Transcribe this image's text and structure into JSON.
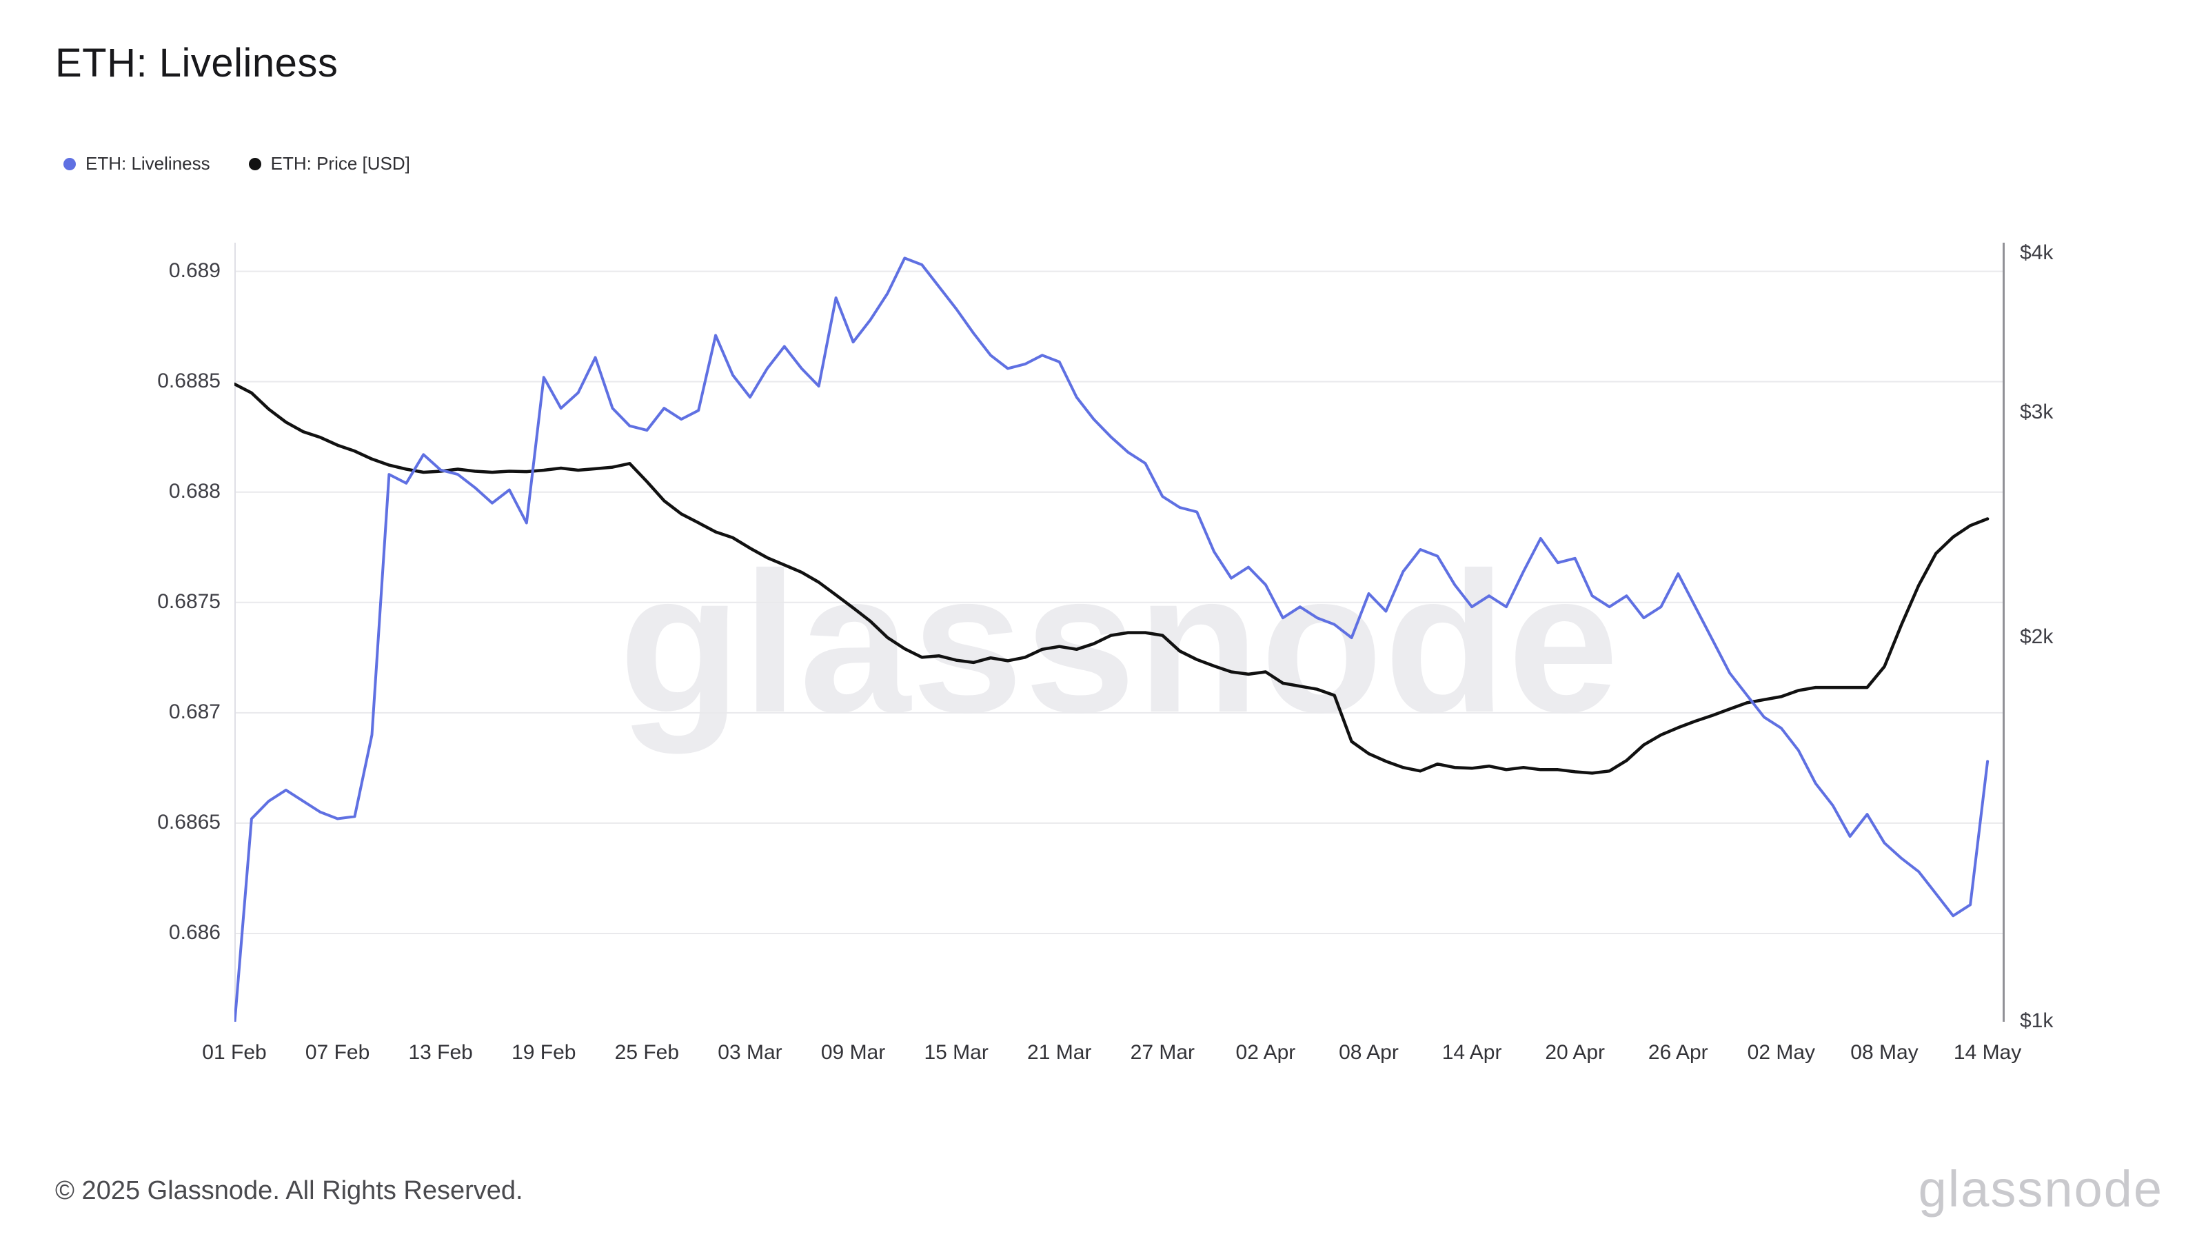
{
  "page": {
    "title": "ETH: Liveliness",
    "watermark": "glassnode",
    "footer_copyright": "© 2025 Glassnode. All Rights Reserved.",
    "footer_brand": "glassnode"
  },
  "legend": {
    "items": [
      {
        "label": "ETH: Liveliness",
        "color": "#5f70e2"
      },
      {
        "label": "ETH: Price [USD]",
        "color": "#111111"
      }
    ]
  },
  "chart_data": {
    "type": "line",
    "title": "ETH: Liveliness",
    "grid": "horizontal",
    "legend_position": "top-left",
    "x_domain_days": 103,
    "x_tick_labels": [
      "01 Feb",
      "07 Feb",
      "13 Feb",
      "19 Feb",
      "25 Feb",
      "03 Mar",
      "09 Mar",
      "15 Mar",
      "21 Mar",
      "27 Mar",
      "02 Apr",
      "08 Apr",
      "14 Apr",
      "20 Apr",
      "26 Apr",
      "02 May",
      "08 May",
      "14 May"
    ],
    "x_tick_day_index": [
      0,
      6,
      12,
      18,
      24,
      30,
      36,
      42,
      48,
      54,
      60,
      66,
      72,
      78,
      84,
      90,
      96,
      102
    ],
    "left_axis": {
      "scale": "linear",
      "min": 0.6856,
      "max": 0.68913,
      "ticks": [
        0.689,
        0.6885,
        0.688,
        0.6875,
        0.687,
        0.6865,
        0.686
      ],
      "tick_labels": [
        "0.689",
        "0.6885",
        "0.688",
        "0.6875",
        "0.687",
        "0.6865",
        "0.686"
      ]
    },
    "right_axis": {
      "scale": "log",
      "min": 1000,
      "max": 4078,
      "ticks": [
        4000,
        3000,
        2000,
        1000
      ],
      "tick_labels": [
        "$4k",
        "$3k",
        "$2k",
        "$1k"
      ]
    },
    "series": [
      {
        "name": "ETH: Price [USD]",
        "axis": "right",
        "color": "#111111",
        "stroke_width": 4.5,
        "values": [
          3160,
          3110,
          3020,
          2950,
          2900,
          2870,
          2830,
          2800,
          2760,
          2730,
          2710,
          2695,
          2700,
          2710,
          2700,
          2695,
          2700,
          2698,
          2705,
          2715,
          2705,
          2712,
          2720,
          2738,
          2650,
          2560,
          2500,
          2460,
          2420,
          2395,
          2350,
          2310,
          2280,
          2250,
          2210,
          2160,
          2110,
          2060,
          2000,
          1960,
          1930,
          1935,
          1920,
          1912,
          1928,
          1918,
          1930,
          1958,
          1968,
          1958,
          1978,
          2008,
          2018,
          2018,
          2008,
          1952,
          1922,
          1900,
          1880,
          1872,
          1880,
          1842,
          1832,
          1822,
          1802,
          1658,
          1622,
          1600,
          1582,
          1572,
          1592,
          1582,
          1580,
          1586,
          1576,
          1582,
          1576,
          1576,
          1570,
          1566,
          1572,
          1602,
          1648,
          1678,
          1700,
          1720,
          1738,
          1758,
          1778,
          1788,
          1798,
          1818,
          1828,
          1828,
          1828,
          1828,
          1898,
          2048,
          2198,
          2328,
          2398,
          2448,
          2478
        ]
      },
      {
        "name": "ETH: Liveliness",
        "axis": "left",
        "color": "#5f70e2",
        "stroke_width": 4,
        "values": [
          0.68558,
          0.68652,
          0.6866,
          0.68665,
          0.6866,
          0.68655,
          0.68652,
          0.68653,
          0.6869,
          0.68808,
          0.68804,
          0.68817,
          0.6881,
          0.68808,
          0.68802,
          0.68795,
          0.68801,
          0.68786,
          0.68852,
          0.68838,
          0.68845,
          0.68861,
          0.68838,
          0.6883,
          0.68828,
          0.68838,
          0.68833,
          0.68837,
          0.68871,
          0.68853,
          0.68843,
          0.68856,
          0.68866,
          0.68856,
          0.68848,
          0.68888,
          0.68868,
          0.68878,
          0.6889,
          0.68906,
          0.68903,
          0.68893,
          0.68883,
          0.68872,
          0.68862,
          0.68856,
          0.68858,
          0.68862,
          0.68859,
          0.68843,
          0.68833,
          0.68825,
          0.68818,
          0.68813,
          0.68798,
          0.68793,
          0.68791,
          0.68773,
          0.68761,
          0.68766,
          0.68758,
          0.68743,
          0.68748,
          0.68743,
          0.6874,
          0.68734,
          0.68754,
          0.68746,
          0.68764,
          0.68774,
          0.68771,
          0.68758,
          0.68748,
          0.68753,
          0.68748,
          0.68764,
          0.68779,
          0.68768,
          0.6877,
          0.68753,
          0.68748,
          0.68753,
          0.68743,
          0.68748,
          0.68763,
          0.68748,
          0.68733,
          0.68718,
          0.68708,
          0.68698,
          0.68693,
          0.68683,
          0.68668,
          0.68658,
          0.68644,
          0.68654,
          0.68641,
          0.68634,
          0.68628,
          0.68618,
          0.68608,
          0.68613,
          0.68678
        ]
      }
    ],
    "colors": {
      "grid": "#e9e9ec",
      "plot_left_border": "#dfdfe6",
      "plot_right_border": "#919197"
    }
  }
}
